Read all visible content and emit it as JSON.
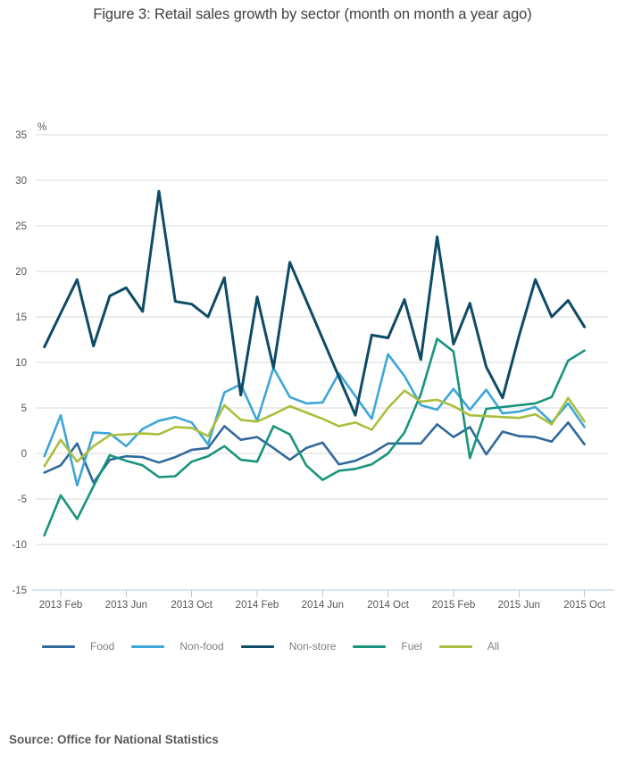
{
  "title": "Figure 3: Retail sales growth by sector (month on month a year ago)",
  "source": "Source: Office for National Statistics",
  "y_axis": {
    "unit_label": "%",
    "tick_labels": [
      "35",
      "30",
      "25",
      "20",
      "15",
      "10",
      "5",
      "0",
      "-5",
      "-10",
      "-15"
    ],
    "tick_values": [
      35,
      30,
      25,
      20,
      15,
      10,
      5,
      0,
      -5,
      -10,
      -15
    ]
  },
  "x_axis": {
    "tick_labels": [
      "2013 Feb",
      "2013 Jun",
      "2013 Oct",
      "2014 Feb",
      "2014 Jun",
      "2014 Oct",
      "2015 Feb",
      "2015 Jun",
      "2015 Oct"
    ],
    "tick_month_indices": [
      1,
      5,
      9,
      13,
      17,
      21,
      25,
      29,
      33
    ]
  },
  "legend": {
    "items": [
      {
        "label": "Food",
        "color": "#31699c"
      },
      {
        "label": "Non-food",
        "color": "#3ea6d7"
      },
      {
        "label": "Non-store",
        "color": "#0e4b66"
      },
      {
        "label": "Fuel",
        "color": "#17947c"
      },
      {
        "label": "All",
        "color": "#aabf3d"
      }
    ]
  },
  "colors": {
    "gridline": "#d9d9d9",
    "axis_line": "#b7cbd8",
    "tick_label": "#55565a",
    "title": "#404042",
    "legend_label": "#7d8084",
    "source": "#58595b"
  },
  "chart_data": {
    "type": "line",
    "title": "Figure 3: Retail sales growth by sector (month on month a year ago)",
    "xlabel": "",
    "ylabel": "%",
    "ylim": [
      -15,
      35
    ],
    "grid": true,
    "legend_position": "bottom",
    "x": [
      "2013 Jan",
      "2013 Feb",
      "2013 Mar",
      "2013 Apr",
      "2013 May",
      "2013 Jun",
      "2013 Jul",
      "2013 Aug",
      "2013 Sep",
      "2013 Oct",
      "2013 Nov",
      "2013 Dec",
      "2014 Jan",
      "2014 Feb",
      "2014 Mar",
      "2014 Apr",
      "2014 May",
      "2014 Jun",
      "2014 Jul",
      "2014 Aug",
      "2014 Sep",
      "2014 Oct",
      "2014 Nov",
      "2014 Dec",
      "2015 Jan",
      "2015 Feb",
      "2015 Mar",
      "2015 Apr",
      "2015 May",
      "2015 Jun",
      "2015 Jul",
      "2015 Aug",
      "2015 Sep",
      "2015 Oct"
    ],
    "series": [
      {
        "name": "Food",
        "color": "#31699c",
        "width": 2.6,
        "values": [
          -2.1,
          -1.3,
          1.1,
          -3.2,
          -0.7,
          -0.3,
          -0.4,
          -1.0,
          -0.4,
          0.4,
          0.6,
          3.0,
          1.5,
          1.8,
          0.6,
          -0.7,
          0.6,
          1.2,
          -1.2,
          -0.8,
          0.0,
          1.1,
          1.1,
          1.1,
          3.2,
          1.8,
          2.9,
          -0.1,
          2.4,
          1.9,
          1.8,
          1.3,
          3.4,
          1.0
        ]
      },
      {
        "name": "Non-food",
        "color": "#3ea6d7",
        "width": 2.6,
        "values": [
          -0.3,
          4.2,
          -3.5,
          2.3,
          2.2,
          0.8,
          2.7,
          3.6,
          4.0,
          3.4,
          1.0,
          6.7,
          7.6,
          3.6,
          9.4,
          6.2,
          5.5,
          5.6,
          8.8,
          6.3,
          3.8,
          10.9,
          8.5,
          5.3,
          4.8,
          7.1,
          4.8,
          7.0,
          4.4,
          4.6,
          5.1,
          3.4,
          5.5,
          2.9
        ]
      },
      {
        "name": "Non-store",
        "color": "#0e4b66",
        "width": 3,
        "values": [
          11.7,
          15.4,
          19.1,
          11.8,
          17.3,
          18.2,
          15.6,
          28.8,
          16.7,
          16.4,
          15.0,
          19.3,
          6.4,
          17.2,
          9.4,
          21.0,
          16.8,
          12.6,
          8.4,
          4.2,
          13.0,
          12.7,
          16.9,
          10.3,
          23.8,
          12.0,
          16.5,
          9.5,
          6.1,
          12.9,
          19.1,
          15.0,
          16.8,
          13.9
        ]
      },
      {
        "name": "Fuel",
        "color": "#17947c",
        "width": 2.6,
        "values": [
          -9.0,
          -4.6,
          -7.2,
          -3.6,
          -0.2,
          -0.8,
          -1.3,
          -2.6,
          -2.5,
          -0.9,
          -0.3,
          0.8,
          -0.7,
          -0.9,
          3.0,
          2.1,
          -1.3,
          -2.9,
          -1.9,
          -1.7,
          -1.2,
          0.0,
          2.3,
          6.5,
          12.6,
          11.2,
          -0.5,
          4.9,
          5.1,
          5.3,
          5.5,
          6.2,
          10.2,
          11.3
        ]
      },
      {
        "name": "All",
        "color": "#aabf3d",
        "width": 2.6,
        "values": [
          -1.4,
          1.5,
          -0.9,
          0.8,
          2.0,
          2.1,
          2.2,
          2.1,
          2.9,
          2.8,
          1.9,
          5.3,
          3.7,
          3.5,
          4.3,
          5.2,
          4.5,
          3.8,
          3.0,
          3.4,
          2.6,
          5.0,
          6.9,
          5.7,
          5.9,
          5.2,
          4.2,
          4.1,
          4.0,
          3.9,
          4.3,
          3.2,
          6.1,
          3.5
        ]
      }
    ]
  }
}
